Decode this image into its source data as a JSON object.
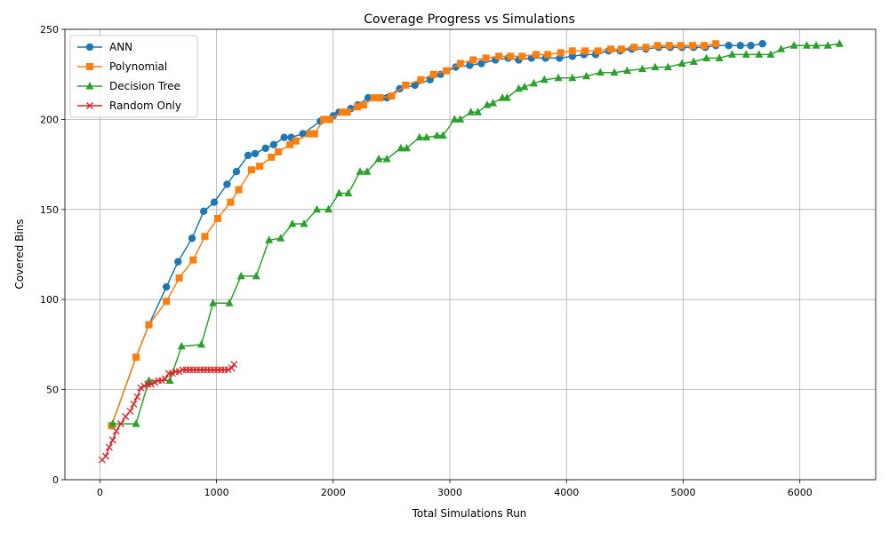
{
  "chart_data": {
    "type": "line",
    "title": "Coverage Progress vs Simulations",
    "xlabel": "Total Simulations Run",
    "ylabel": "Covered Bins",
    "xlim": [
      -300,
      6650
    ],
    "ylim": [
      0,
      250
    ],
    "xticks": [
      0,
      1000,
      2000,
      3000,
      4000,
      5000,
      6000
    ],
    "yticks": [
      0,
      50,
      100,
      150,
      200,
      250
    ],
    "grid": true,
    "legend_position": "top-left",
    "series": [
      {
        "name": "ANN",
        "color": "#1f77b4",
        "marker": "circle",
        "x": [
          100,
          310,
          420,
          570,
          670,
          790,
          890,
          980,
          1090,
          1170,
          1270,
          1330,
          1420,
          1490,
          1580,
          1640,
          1740,
          1890,
          2000,
          2050,
          2150,
          2210,
          2300,
          2410,
          2460,
          2570,
          2700,
          2830,
          2920,
          3050,
          3170,
          3270,
          3390,
          3500,
          3590,
          3700,
          3820,
          3940,
          4050,
          4150,
          4250,
          4360,
          4460,
          4560,
          4680,
          4790,
          4890,
          4990,
          5090,
          5190,
          5280,
          5390,
          5490,
          5580,
          5680
        ],
        "y": [
          30,
          68,
          86,
          107,
          121,
          134,
          149,
          154,
          164,
          171,
          180,
          181,
          184,
          186,
          190,
          190,
          192,
          199,
          202,
          204,
          206,
          208,
          212,
          212,
          212,
          217,
          219,
          222,
          225,
          229,
          230,
          231,
          233,
          234,
          233,
          234,
          234,
          234,
          235,
          236,
          236,
          238,
          238,
          239,
          239,
          240,
          240,
          240,
          240,
          240,
          241,
          241,
          241,
          241,
          242
        ]
      },
      {
        "name": "Polynomial",
        "color": "#ff7f0e",
        "marker": "square",
        "x": [
          100,
          310,
          420,
          570,
          680,
          800,
          900,
          1010,
          1120,
          1190,
          1300,
          1370,
          1470,
          1530,
          1630,
          1680,
          1800,
          1840,
          1920,
          1970,
          2080,
          2120,
          2210,
          2260,
          2350,
          2400,
          2500,
          2620,
          2750,
          2860,
          2970,
          3090,
          3200,
          3310,
          3420,
          3520,
          3620,
          3740,
          3840,
          3950,
          4050,
          4160,
          4270,
          4380,
          4470,
          4580,
          4680,
          4780,
          4880,
          4980,
          5080,
          5180,
          5280
        ],
        "y": [
          30,
          68,
          86,
          99,
          112,
          122,
          135,
          145,
          154,
          161,
          172,
          174,
          179,
          182,
          186,
          188,
          192,
          192,
          200,
          200,
          204,
          204,
          207,
          208,
          212,
          212,
          213,
          219,
          222,
          225,
          227,
          231,
          233,
          234,
          235,
          235,
          235,
          236,
          236,
          237,
          238,
          238,
          238,
          239,
          239,
          240,
          240,
          241,
          241,
          241,
          241,
          241,
          242
        ]
      },
      {
        "name": "Decision Tree",
        "color": "#2ca02c",
        "marker": "triangle",
        "x": [
          110,
          310,
          420,
          600,
          700,
          870,
          970,
          1110,
          1210,
          1340,
          1450,
          1550,
          1650,
          1750,
          1860,
          1960,
          2050,
          2130,
          2230,
          2290,
          2390,
          2460,
          2580,
          2630,
          2740,
          2800,
          2890,
          2940,
          3040,
          3090,
          3180,
          3240,
          3320,
          3370,
          3450,
          3490,
          3590,
          3640,
          3720,
          3810,
          3930,
          4050,
          4170,
          4290,
          4410,
          4520,
          4650,
          4760,
          4870,
          4990,
          5090,
          5200,
          5310,
          5420,
          5540,
          5650,
          5750,
          5840,
          5950,
          6060,
          6140,
          6240,
          6340
        ],
        "y": [
          31,
          31,
          55,
          55,
          74,
          75,
          98,
          98,
          113,
          113,
          133,
          134,
          142,
          142,
          150,
          150,
          159,
          159,
          171,
          171,
          178,
          178,
          184,
          184,
          190,
          190,
          191,
          191,
          200,
          200,
          204,
          204,
          208,
          209,
          212,
          212,
          217,
          218,
          220,
          222,
          223,
          223,
          224,
          226,
          226,
          227,
          228,
          229,
          229,
          231,
          232,
          234,
          234,
          236,
          236,
          236,
          236,
          239,
          241,
          241,
          241,
          241,
          242
        ]
      },
      {
        "name": "Random Only",
        "color": "#d62728",
        "marker": "x",
        "x": [
          20,
          50,
          80,
          110,
          140,
          180,
          220,
          260,
          290,
          320,
          350,
          380,
          410,
          440,
          470,
          500,
          530,
          560,
          590,
          620,
          650,
          680,
          710,
          740,
          770,
          800,
          830,
          860,
          890,
          920,
          950,
          980,
          1010,
          1040,
          1070,
          1100,
          1130,
          1150
        ],
        "y": [
          11,
          13,
          18,
          22,
          27,
          31,
          35,
          38,
          42,
          46,
          51,
          52,
          53,
          53,
          54,
          55,
          55,
          56,
          59,
          59,
          60,
          60,
          61,
          61,
          61,
          61,
          61,
          61,
          61,
          61,
          61,
          61,
          61,
          61,
          61,
          61,
          62,
          64
        ]
      }
    ]
  }
}
